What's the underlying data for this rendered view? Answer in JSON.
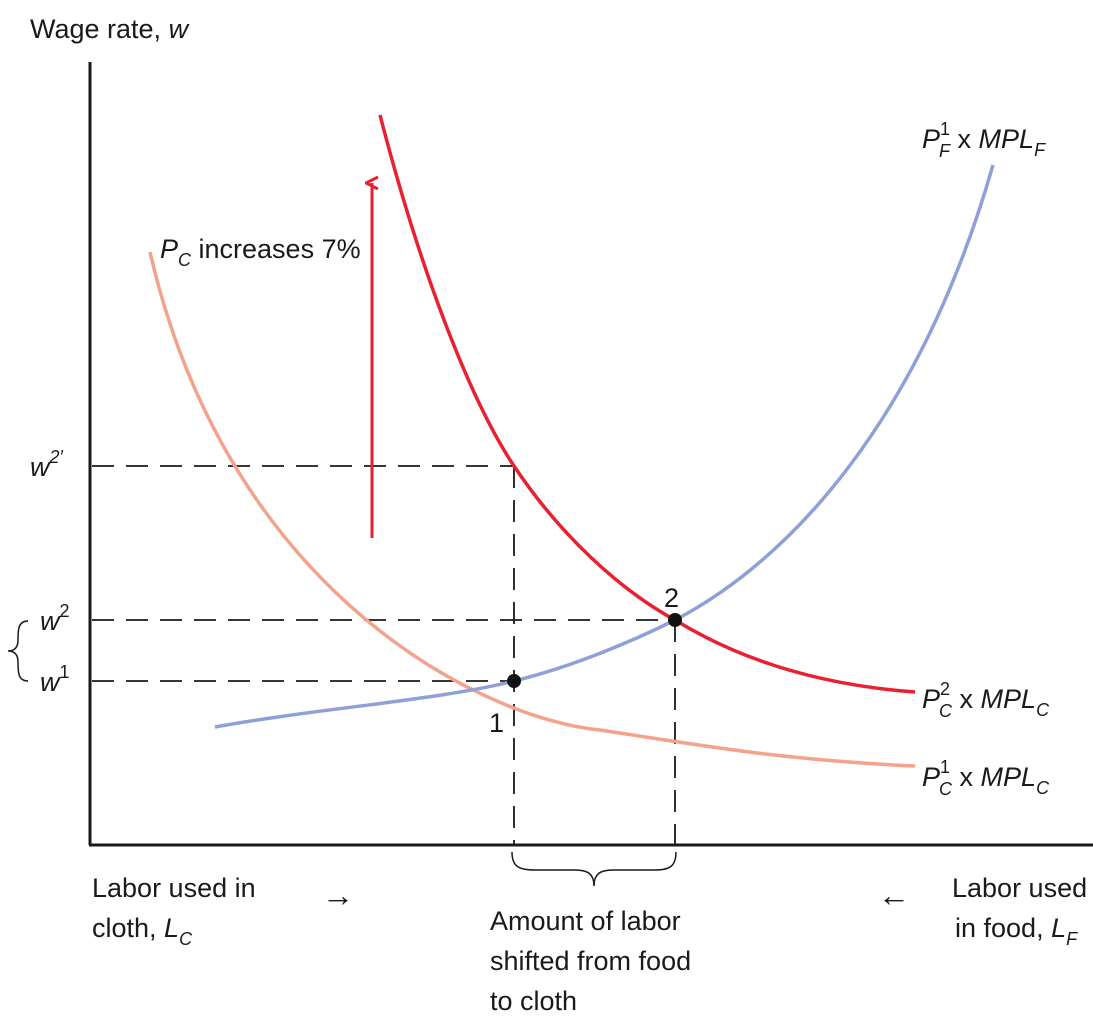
{
  "chart_data": {
    "type": "line",
    "ylabel": {
      "text": "Wage rate, ",
      "var": "w"
    },
    "y_ticks": {
      "w2prime": {
        "base": "w",
        "sup": "2′"
      },
      "w2": {
        "base": "w",
        "sup": "2"
      },
      "w1": {
        "base": "w",
        "sup": "1"
      }
    },
    "x_left_label": {
      "line1": "Labor used in",
      "line2_prefix": "cloth, ",
      "var": "L",
      "sub": "C",
      "arrow": "→"
    },
    "x_right_label": {
      "line1": "Labor used",
      "line2_prefix": "in food, ",
      "var": "L",
      "sub": "F",
      "arrow": "←"
    },
    "shift_label": {
      "lines": [
        "Amount of labor",
        "shifted from food",
        "to cloth"
      ]
    },
    "annotation": {
      "var": "P",
      "sub": "C",
      "text": " increases 7%"
    },
    "series": [
      {
        "name_parts": {
          "P": "P",
          "sup": "1",
          "sub": "F",
          "rest": " x ",
          "mpl": "MPL",
          "mpl_sub": "F"
        },
        "color": "#8fa0d8"
      },
      {
        "name_parts": {
          "P": "P",
          "sup": "2",
          "sub": "C",
          "rest": " x ",
          "mpl": "MPL",
          "mpl_sub": "C"
        },
        "color": "#e8202f"
      },
      {
        "name_parts": {
          "P": "P",
          "sup": "1",
          "sub": "C",
          "rest": " x ",
          "mpl": "MPL",
          "mpl_sub": "C"
        },
        "color": "#f4a28c"
      }
    ],
    "points": [
      {
        "label": "1"
      },
      {
        "label": "2"
      }
    ]
  }
}
